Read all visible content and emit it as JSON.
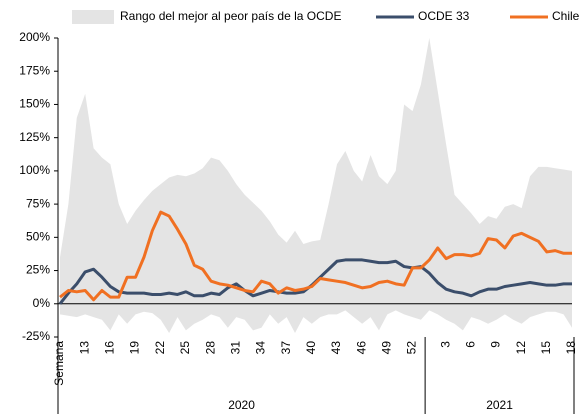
{
  "chart_data": {
    "type": "line",
    "x_label": "Semana",
    "categories": [
      null,
      null,
      null,
      "13",
      null,
      null,
      "16",
      null,
      null,
      "19",
      null,
      null,
      "22",
      null,
      null,
      "25",
      null,
      null,
      "28",
      null,
      null,
      "31",
      null,
      null,
      "34",
      null,
      null,
      "37",
      null,
      null,
      "40",
      null,
      null,
      "43",
      null,
      null,
      "46",
      null,
      null,
      "49",
      null,
      null,
      "52",
      null,
      null,
      null,
      "3",
      null,
      null,
      "6",
      null,
      null,
      "9",
      null,
      null,
      "12",
      null,
      null,
      "15",
      null,
      null,
      "18"
    ],
    "year_groups": [
      {
        "label": "2020",
        "span": 44
      },
      {
        "label": "2021",
        "span": 18
      }
    ],
    "ylim": [
      -25,
      200
    ],
    "yticks": [
      {
        "value": -25,
        "label": "-25%"
      },
      {
        "value": 0,
        "label": "0%"
      },
      {
        "value": 25,
        "label": "25%"
      },
      {
        "value": 50,
        "label": "50%"
      },
      {
        "value": 75,
        "label": "75%"
      },
      {
        "value": 100,
        "label": "100%"
      },
      {
        "value": 125,
        "label": "125%"
      },
      {
        "value": 150,
        "label": "150%"
      },
      {
        "value": 175,
        "label": "175%"
      },
      {
        "value": 200,
        "label": "200%"
      }
    ],
    "series": [
      {
        "name": "Rango del mejor al peor país de la OCDE",
        "kind": "band",
        "color": "#e4e4e4",
        "high": [
          35,
          75,
          140,
          158,
          117,
          110,
          105,
          75,
          60,
          70,
          78,
          85,
          90,
          95,
          97,
          96,
          98,
          102,
          110,
          108,
          100,
          90,
          82,
          76,
          70,
          62,
          52,
          46,
          55,
          45,
          47,
          48,
          75,
          105,
          115,
          100,
          92,
          112,
          96,
          90,
          100,
          150,
          145,
          165,
          200,
          160,
          120,
          82,
          75,
          68,
          60,
          66,
          64,
          73,
          75,
          72,
          96,
          103,
          103,
          102,
          101,
          100
        ],
        "low": [
          -8,
          -9,
          -10,
          -8,
          -10,
          -12,
          -20,
          -8,
          -15,
          -8,
          -6,
          -7,
          -12,
          -22,
          -10,
          -20,
          -15,
          -12,
          -8,
          -10,
          -18,
          -10,
          -12,
          -20,
          -18,
          -8,
          -15,
          -10,
          -22,
          -10,
          -15,
          -10,
          -8,
          -8,
          -5,
          -10,
          -15,
          -10,
          -20,
          -8,
          -5,
          -8,
          -10,
          -12,
          -5,
          -8,
          -12,
          -15,
          -20,
          -10,
          -12,
          -15,
          -12,
          -8,
          -12,
          -15,
          -10,
          -8,
          -6,
          -6,
          -8,
          -18
        ]
      },
      {
        "name": "OCDE 33",
        "color": "#3b4e6b",
        "values": [
          0,
          8,
          15,
          24,
          26,
          20,
          13,
          9,
          8,
          8,
          8,
          7,
          7,
          8,
          7,
          9,
          6,
          6,
          8,
          7,
          12,
          15,
          10,
          6,
          8,
          10,
          9,
          8,
          8,
          9,
          14,
          20,
          26,
          32,
          33,
          33,
          33,
          32,
          31,
          31,
          32,
          28,
          27,
          28,
          23,
          16,
          11,
          9,
          8,
          6,
          9,
          11,
          11,
          13,
          14,
          15,
          16,
          15,
          14,
          14,
          15,
          15
        ]
      },
      {
        "name": "Chile",
        "color": "#f07022",
        "values": [
          5,
          10,
          9,
          10,
          3,
          10,
          5,
          5,
          20,
          20,
          35,
          55,
          69,
          66,
          56,
          45,
          29,
          26,
          17,
          15,
          14,
          12,
          10,
          9,
          17,
          15,
          8,
          12,
          10,
          11,
          13,
          19,
          18,
          17,
          16,
          14,
          12,
          13,
          16,
          17,
          15,
          14,
          27,
          27,
          33,
          42,
          34,
          37,
          37,
          36,
          38,
          49,
          48,
          42,
          51,
          53,
          50,
          47,
          39,
          40,
          38,
          38
        ]
      }
    ]
  }
}
